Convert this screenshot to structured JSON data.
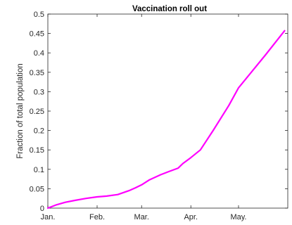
{
  "chart_data": {
    "type": "line",
    "title": "Vaccination roll out",
    "xlabel": "",
    "ylabel": "Fraction of total population",
    "x_tick_labels": [
      "Jan.",
      "Feb.",
      "Mar.",
      "Apr.",
      "May."
    ],
    "x_tick_positions": [
      1,
      32,
      60,
      91,
      121
    ],
    "xlim": [
      1,
      152
    ],
    "ylim": [
      0,
      0.5
    ],
    "y_ticks": [
      0,
      0.05,
      0.1,
      0.15,
      0.2,
      0.25,
      0.3,
      0.35,
      0.4,
      0.45,
      0.5
    ],
    "y_tick_labels": [
      "0",
      "0.05",
      "0.1",
      "0.15",
      "0.2",
      "0.25",
      "0.3",
      "0.35",
      "0.4",
      "0.45",
      "0.5"
    ],
    "grid": false,
    "series": [
      {
        "color": "#ff00ff",
        "x": [
          1,
          6,
          12,
          18,
          25,
          32,
          38,
          45,
          52,
          56,
          60,
          65,
          72,
          77,
          83,
          86,
          91,
          97,
          105,
          115,
          121,
          129,
          138,
          150
        ],
        "y": [
          0.0,
          0.008,
          0.015,
          0.02,
          0.025,
          0.029,
          0.031,
          0.035,
          0.045,
          0.052,
          0.06,
          0.073,
          0.086,
          0.094,
          0.103,
          0.115,
          0.13,
          0.15,
          0.2,
          0.265,
          0.31,
          0.35,
          0.395,
          0.457
        ]
      }
    ]
  }
}
